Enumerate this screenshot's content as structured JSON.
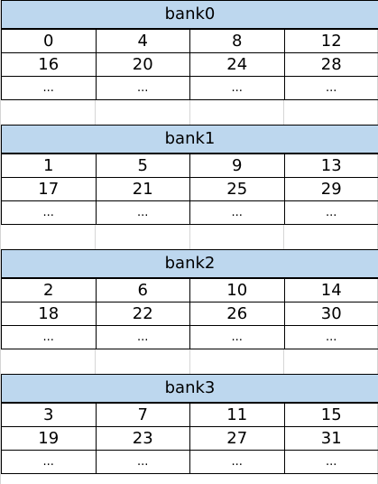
{
  "banks": [
    {
      "name": "bank0",
      "rows": [
        [
          "0",
          "4",
          "8",
          "12"
        ],
        [
          "16",
          "20",
          "24",
          "28"
        ],
        [
          "...",
          "...",
          "...",
          "..."
        ]
      ]
    },
    {
      "name": "bank1",
      "rows": [
        [
          "1",
          "5",
          "9",
          "13"
        ],
        [
          "17",
          "21",
          "25",
          "29"
        ],
        [
          "...",
          "...",
          "...",
          "..."
        ]
      ]
    },
    {
      "name": "bank2",
      "rows": [
        [
          "2",
          "6",
          "10",
          "14"
        ],
        [
          "18",
          "22",
          "26",
          "30"
        ],
        [
          "...",
          "...",
          "...",
          "..."
        ]
      ]
    },
    {
      "name": "bank3",
      "rows": [
        [
          "3",
          "7",
          "11",
          "15"
        ],
        [
          "19",
          "23",
          "27",
          "31"
        ],
        [
          "...",
          "...",
          "...",
          "..."
        ]
      ]
    }
  ],
  "colors": {
    "header_fill": "#bdd7ee",
    "border": "#000000",
    "background": "#ffffff"
  }
}
